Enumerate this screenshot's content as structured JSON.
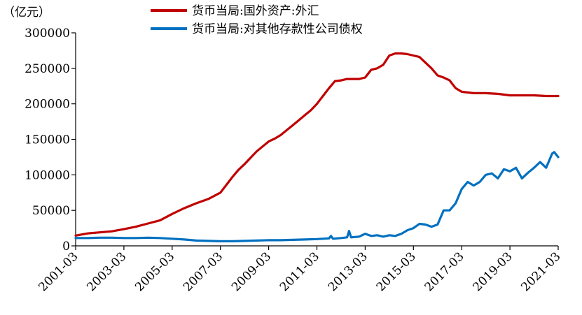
{
  "chart_data": {
    "type": "line",
    "title": "",
    "unit_label": "（亿元）",
    "ylim": [
      0,
      300000
    ],
    "yticks": [
      "0",
      "50000",
      "100000",
      "150000",
      "200000",
      "250000",
      "300000"
    ],
    "xlim": [
      "2001-03",
      "2021-03"
    ],
    "xticks": [
      "2001-03",
      "2003-03",
      "2005-03",
      "2007-03",
      "2009-03",
      "2011-03",
      "2013-03",
      "2015-03",
      "2017-03",
      "2019-03",
      "2021-03"
    ],
    "legend_position": "top",
    "grid": false,
    "series": [
      {
        "name": "货币当局:国外资产:外汇",
        "color": "#c00000",
        "points": [
          [
            "2001-03",
            14500
          ],
          [
            "2001-09",
            17500
          ],
          [
            "2002-03",
            19000
          ],
          [
            "2002-09",
            20500
          ],
          [
            "2003-03",
            23500
          ],
          [
            "2003-09",
            27000
          ],
          [
            "2004-03",
            31500
          ],
          [
            "2004-09",
            36000
          ],
          [
            "2005-03",
            45000
          ],
          [
            "2005-09",
            53000
          ],
          [
            "2006-03",
            60000
          ],
          [
            "2006-09",
            66000
          ],
          [
            "2007-03",
            75000
          ],
          [
            "2007-06",
            86000
          ],
          [
            "2007-09",
            97000
          ],
          [
            "2007-12",
            107000
          ],
          [
            "2008-03",
            115000
          ],
          [
            "2008-06",
            124000
          ],
          [
            "2008-09",
            133000
          ],
          [
            "2008-12",
            140000
          ],
          [
            "2009-03",
            147000
          ],
          [
            "2009-06",
            151000
          ],
          [
            "2009-09",
            156000
          ],
          [
            "2009-12",
            163000
          ],
          [
            "2010-03",
            170000
          ],
          [
            "2010-06",
            177000
          ],
          [
            "2010-09",
            184000
          ],
          [
            "2010-12",
            191000
          ],
          [
            "2011-03",
            200000
          ],
          [
            "2011-06",
            211000
          ],
          [
            "2011-09",
            222000
          ],
          [
            "2011-12",
            232000
          ],
          [
            "2012-03",
            233000
          ],
          [
            "2012-06",
            235000
          ],
          [
            "2012-12",
            235000
          ],
          [
            "2013-03",
            237000
          ],
          [
            "2013-06",
            248000
          ],
          [
            "2013-09",
            250000
          ],
          [
            "2013-12",
            255000
          ],
          [
            "2014-03",
            268000
          ],
          [
            "2014-06",
            271000
          ],
          [
            "2014-09",
            271000
          ],
          [
            "2014-12",
            270000
          ],
          [
            "2015-03",
            268000
          ],
          [
            "2015-06",
            266000
          ],
          [
            "2015-09",
            258000
          ],
          [
            "2015-12",
            250000
          ],
          [
            "2016-03",
            240000
          ],
          [
            "2016-06",
            237000
          ],
          [
            "2016-09",
            233000
          ],
          [
            "2016-12",
            222000
          ],
          [
            "2017-03",
            217000
          ],
          [
            "2017-09",
            215000
          ],
          [
            "2018-03",
            215000
          ],
          [
            "2018-09",
            214000
          ],
          [
            "2019-03",
            212000
          ],
          [
            "2019-09",
            212000
          ],
          [
            "2020-03",
            212000
          ],
          [
            "2020-09",
            211000
          ],
          [
            "2021-03",
            211000
          ]
        ]
      },
      {
        "name": "货币当局:对其他存款性公司债权",
        "color": "#0070c0",
        "points": [
          [
            "2001-03",
            11000
          ],
          [
            "2001-09",
            11000
          ],
          [
            "2002-03",
            11500
          ],
          [
            "2002-09",
            11500
          ],
          [
            "2003-03",
            11000
          ],
          [
            "2003-09",
            11000
          ],
          [
            "2004-03",
            11500
          ],
          [
            "2004-09",
            11000
          ],
          [
            "2005-03",
            10000
          ],
          [
            "2005-09",
            9000
          ],
          [
            "2006-03",
            7500
          ],
          [
            "2006-09",
            7000
          ],
          [
            "2007-03",
            6500
          ],
          [
            "2007-09",
            6500
          ],
          [
            "2008-03",
            7000
          ],
          [
            "2008-09",
            7500
          ],
          [
            "2009-03",
            8000
          ],
          [
            "2009-09",
            8000
          ],
          [
            "2010-03",
            8500
          ],
          [
            "2010-09",
            9000
          ],
          [
            "2011-03",
            9500
          ],
          [
            "2011-06",
            10000
          ],
          [
            "2011-09",
            10500
          ],
          [
            "2011-10",
            14000
          ],
          [
            "2011-11",
            10000
          ],
          [
            "2012-03",
            11000
          ],
          [
            "2012-06",
            12000
          ],
          [
            "2012-07",
            21000
          ],
          [
            "2012-08",
            12000
          ],
          [
            "2012-12",
            13000
          ],
          [
            "2013-03",
            17000
          ],
          [
            "2013-06",
            14000
          ],
          [
            "2013-09",
            15000
          ],
          [
            "2013-12",
            13000
          ],
          [
            "2014-03",
            15000
          ],
          [
            "2014-06",
            14000
          ],
          [
            "2014-09",
            17000
          ],
          [
            "2014-12",
            22000
          ],
          [
            "2015-03",
            25000
          ],
          [
            "2015-06",
            31000
          ],
          [
            "2015-09",
            30000
          ],
          [
            "2015-12",
            27000
          ],
          [
            "2016-03",
            30000
          ],
          [
            "2016-06",
            50000
          ],
          [
            "2016-09",
            50000
          ],
          [
            "2016-12",
            60000
          ],
          [
            "2017-03",
            80000
          ],
          [
            "2017-06",
            90000
          ],
          [
            "2017-09",
            85000
          ],
          [
            "2017-12",
            90000
          ],
          [
            "2018-03",
            100000
          ],
          [
            "2018-06",
            102000
          ],
          [
            "2018-09",
            95000
          ],
          [
            "2018-12",
            108000
          ],
          [
            "2019-03",
            105000
          ],
          [
            "2019-06",
            110000
          ],
          [
            "2019-09",
            95000
          ],
          [
            "2019-12",
            103000
          ],
          [
            "2020-03",
            110000
          ],
          [
            "2020-06",
            118000
          ],
          [
            "2020-09",
            110000
          ],
          [
            "2020-12",
            130000
          ],
          [
            "2021-01",
            132000
          ],
          [
            "2021-03",
            125000
          ]
        ]
      }
    ]
  }
}
